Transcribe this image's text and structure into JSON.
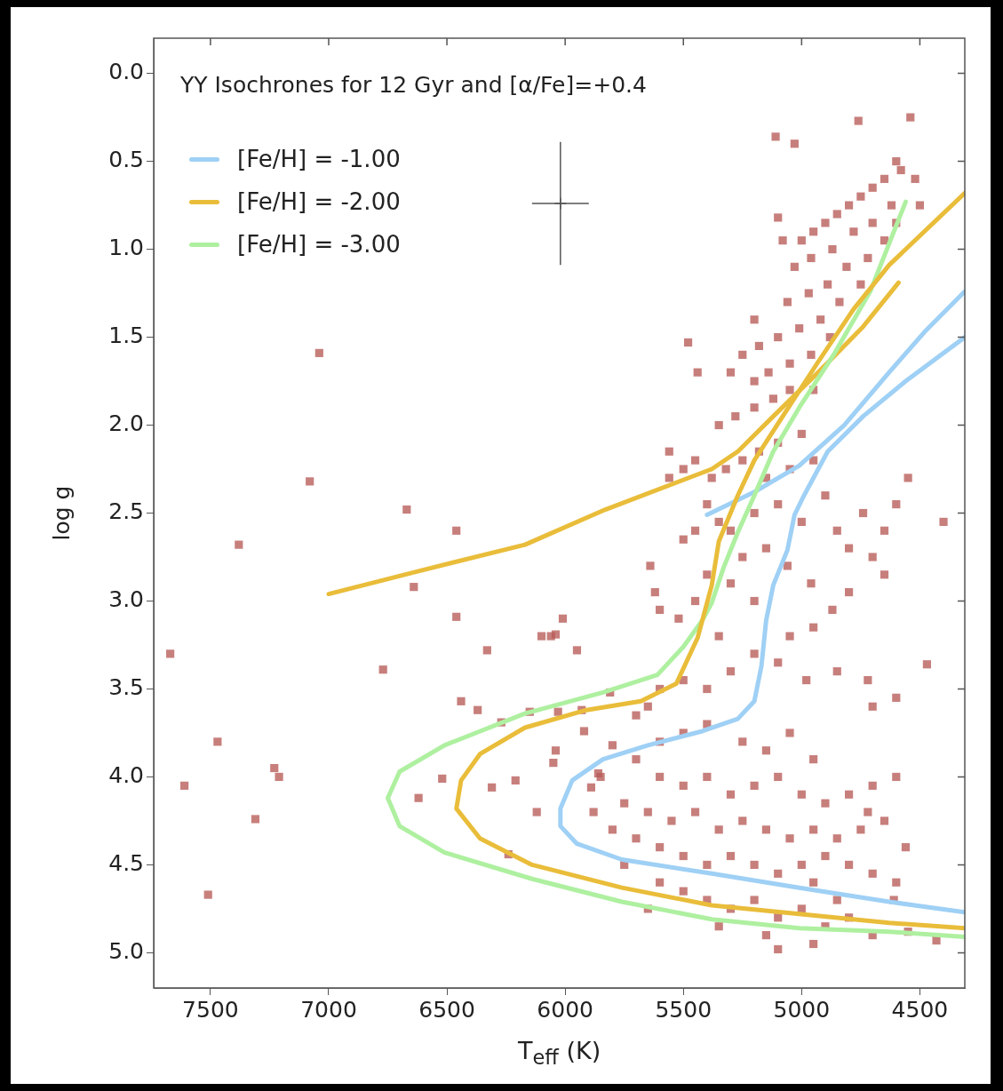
{
  "chart_data": {
    "type": "scatter",
    "title": "YY Isochrones for 12 Gyr and [α/Fe]=+0.4",
    "xlabel": "T$_{eff}$ (K)",
    "ylabel": "log g",
    "xlim": [
      7740,
      4310
    ],
    "ylim": [
      5.2,
      -0.2
    ],
    "xticks": [
      7500,
      7000,
      6500,
      6000,
      5500,
      5000,
      4500
    ],
    "yticks": [
      {
        "value": 0,
        "label": "0.0"
      },
      {
        "value": 0.5,
        "label": "0.5"
      },
      {
        "value": 1,
        "label": "1.0"
      },
      {
        "value": 1.5,
        "label": "1.5"
      },
      {
        "value": 2,
        "label": "2.0"
      },
      {
        "value": 2.5,
        "label": "2.5"
      },
      {
        "value": 3,
        "label": "3.0"
      },
      {
        "value": 3.5,
        "label": "3.5"
      },
      {
        "value": 4,
        "label": "4.0"
      },
      {
        "value": 4.5,
        "label": "4.5"
      },
      {
        "value": 5,
        "label": "5.0"
      }
    ],
    "legend": "top left",
    "series": [
      {
        "type": "scatter",
        "color": "#b85c58",
        "marker": "square",
        "x": [
          7670,
          7610,
          7470,
          7380,
          7510,
          7310,
          7230,
          7210,
          7080,
          7040,
          6770,
          6670,
          6620,
          6640,
          6520,
          6460,
          6460,
          6440,
          6370,
          6310,
          6330,
          6270,
          6240,
          6210,
          6120,
          6100,
          6060,
          6040,
          6010,
          5950,
          6150,
          6030,
          5930,
          5920,
          6040,
          6050,
          5810,
          5800,
          5860,
          5890,
          5480,
          5440,
          4540,
          4760,
          5110,
          5030,
          4400,
          4470,
          4550,
          4430,
          5100,
          4600,
          4650,
          4700,
          4750,
          4800,
          4850,
          4900,
          4950,
          5000,
          4580,
          4620,
          4700,
          4780,
          4870,
          4960,
          5030,
          4650,
          4720,
          4810,
          4890,
          4970,
          5060,
          4750,
          4840,
          4920,
          5010,
          5100,
          4880,
          4960,
          5050,
          5140,
          5200,
          4500,
          4520,
          4600,
          5100,
          5080,
          5200,
          5180,
          5250,
          5300,
          5120,
          5200,
          5280,
          5350,
          5050,
          4950,
          5000,
          5100,
          5180,
          5250,
          5320,
          5380,
          5150,
          5050,
          4950,
          5450,
          5500,
          5560,
          5560,
          5400,
          5350,
          5300,
          5200,
          5100,
          5000,
          4900,
          4850,
          4800,
          4700,
          4650,
          4600,
          4550,
          4650,
          4740,
          5250,
          5150,
          5060,
          4960,
          4800,
          4870,
          4950,
          5050,
          5200,
          5300,
          5400,
          5450,
          5520,
          5600,
          5640,
          5620,
          5500,
          5450,
          5350,
          5200,
          5100,
          4980,
          4850,
          4720,
          4700,
          4600,
          5300,
          5400,
          5500,
          5600,
          5650,
          5700,
          5700,
          5600,
          5500,
          5400,
          5300,
          5200,
          5100,
          5000,
          4900,
          4800,
          4700,
          4600,
          5750,
          5650,
          5550,
          5450,
          5350,
          5250,
          5150,
          5050,
          4950,
          4850,
          4750,
          4650,
          5800,
          5700,
          5600,
          5500,
          5400,
          5300,
          5200,
          5100,
          5000,
          4900,
          4800,
          4700,
          4600,
          4560,
          5600,
          5500,
          5400,
          5300,
          5200,
          5100,
          5000,
          4900,
          4800,
          4700,
          5350,
          5150,
          4950,
          4850,
          5250,
          5150,
          5050,
          4950,
          5400,
          5500,
          5600,
          5850,
          5880,
          5750,
          5650,
          4720,
          4610,
          4950
        ],
        "values": [
          3.3,
          4.05,
          3.8,
          2.68,
          4.67,
          4.24,
          3.95,
          4.0,
          2.32,
          1.59,
          3.39,
          2.48,
          4.12,
          2.92,
          4.01,
          2.6,
          3.09,
          3.57,
          3.62,
          4.06,
          3.28,
          3.69,
          4.44,
          4.02,
          4.2,
          3.2,
          3.2,
          3.19,
          3.1,
          3.28,
          3.63,
          3.63,
          3.62,
          3.74,
          3.85,
          3.92,
          3.52,
          3.82,
          3.98,
          4.06,
          1.53,
          1.7,
          0.25,
          0.27,
          0.36,
          0.4,
          2.55,
          3.36,
          4.88,
          4.93,
          4.98,
          0.5,
          0.6,
          0.65,
          0.7,
          0.75,
          0.8,
          0.85,
          0.9,
          0.95,
          0.55,
          0.75,
          0.85,
          0.9,
          1.0,
          1.05,
          1.1,
          0.95,
          1.05,
          1.1,
          1.2,
          1.25,
          1.3,
          1.2,
          1.3,
          1.4,
          1.45,
          1.5,
          1.5,
          1.6,
          1.65,
          1.7,
          1.75,
          0.75,
          0.6,
          0.85,
          0.82,
          0.95,
          1.4,
          1.55,
          1.6,
          1.7,
          1.85,
          1.9,
          1.95,
          2.0,
          1.8,
          1.8,
          2.05,
          2.1,
          2.15,
          2.2,
          2.25,
          2.3,
          2.3,
          2.25,
          2.2,
          2.2,
          2.25,
          2.15,
          2.3,
          2.45,
          2.55,
          2.6,
          2.5,
          2.45,
          2.55,
          2.4,
          2.6,
          2.7,
          2.75,
          2.85,
          2.45,
          2.3,
          2.6,
          2.5,
          2.75,
          2.7,
          2.8,
          2.9,
          2.95,
          3.05,
          3.15,
          3.2,
          3.0,
          2.9,
          2.85,
          3.0,
          3.1,
          3.05,
          2.8,
          2.95,
          2.65,
          2.6,
          3.2,
          3.3,
          3.35,
          3.45,
          3.4,
          3.45,
          3.6,
          3.55,
          3.4,
          3.5,
          3.45,
          3.5,
          3.6,
          3.65,
          3.9,
          4.0,
          4.05,
          4.0,
          4.1,
          4.05,
          4.0,
          4.1,
          4.15,
          4.1,
          4.05,
          4.0,
          4.15,
          4.2,
          4.25,
          4.2,
          4.3,
          4.25,
          4.3,
          4.35,
          4.3,
          4.35,
          4.3,
          4.25,
          4.3,
          4.35,
          4.4,
          4.45,
          4.5,
          4.45,
          4.5,
          4.55,
          4.5,
          4.45,
          4.5,
          4.55,
          4.6,
          4.4,
          4.6,
          4.65,
          4.7,
          4.75,
          4.7,
          4.8,
          4.75,
          4.85,
          4.8,
          4.9,
          4.85,
          4.9,
          4.95,
          4.7,
          3.8,
          3.85,
          3.75,
          3.9,
          3.7,
          3.75,
          3.8,
          4.0,
          4.2,
          4.5,
          4.75,
          4.2,
          4.7,
          4.6
        ]
      },
      {
        "type": "scatter",
        "color": "#555555",
        "marker": "cross",
        "x": [
          6020
        ],
        "values": [
          0.74
        ],
        "errors": [
          0.35
        ],
        "xerrors": [
          120
        ]
      },
      {
        "type": "line",
        "name": "[Fe/H] = -1.00",
        "color": "#9fd0f5",
        "x": [
          4310,
          4630,
          5010,
          5380,
          5760,
          5950,
          6020,
          6020,
          5970,
          5840,
          5650,
          5420,
          5270,
          5200,
          5170,
          5150,
          5120,
          5060,
          5030,
          4990,
          4890,
          4740,
          4560,
          4310
        ],
        "values": [
          4.77,
          4.71,
          4.63,
          4.55,
          4.47,
          4.38,
          4.28,
          4.18,
          4.02,
          3.9,
          3.82,
          3.74,
          3.67,
          3.57,
          3.37,
          3.11,
          2.91,
          2.71,
          2.51,
          2.4,
          2.15,
          1.95,
          1.75,
          1.5
        ]
      },
      {
        "type": "line",
        "name": "[Fe/H] = -2.00",
        "color": "#e9bd3a",
        "x": [
          4310,
          4630,
          5010,
          5380,
          5760,
          6140,
          6360,
          6460,
          6440,
          6360,
          6170,
          5910,
          5680,
          5530,
          5440,
          5380,
          5350,
          5270,
          5200,
          5080,
          4930,
          4780,
          4630,
          4310
        ],
        "values": [
          4.86,
          4.83,
          4.78,
          4.73,
          4.63,
          4.5,
          4.35,
          4.18,
          4.02,
          3.87,
          3.72,
          3.62,
          3.57,
          3.47,
          3.21,
          2.91,
          2.66,
          2.4,
          2.2,
          1.95,
          1.64,
          1.34,
          1.09,
          0.68
        ]
      },
      {
        "type": "line",
        "name": "[Fe/H] = -3.00",
        "color": "#aef0a0",
        "x": [
          4310,
          4630,
          5010,
          5380,
          5760,
          6140,
          6510,
          6700,
          6750,
          6700,
          6510,
          6170,
          5840,
          5610,
          5500,
          5420,
          5380,
          5330,
          5270,
          5200,
          5120,
          5010,
          4860,
          4710,
          4560
        ],
        "values": [
          4.91,
          4.88,
          4.86,
          4.81,
          4.71,
          4.58,
          4.43,
          4.28,
          4.12,
          3.97,
          3.82,
          3.64,
          3.52,
          3.42,
          3.26,
          3.11,
          3.01,
          2.81,
          2.61,
          2.4,
          2.15,
          1.9,
          1.59,
          1.24,
          0.73
        ]
      },
      {
        "type": "line",
        "color": "#9fd0f5",
        "x": [
          5400,
          5200,
          5010,
          4820,
          4630,
          4480,
          4310
        ],
        "values": [
          2.51,
          2.38,
          2.23,
          2.0,
          1.7,
          1.47,
          1.24
        ]
      },
      {
        "type": "line",
        "color": "#e9bd3a",
        "x": [
          7000,
          6620,
          6170,
          5830,
          5380,
          5270,
          5120,
          4930,
          4740,
          4590
        ],
        "values": [
          2.96,
          2.83,
          2.68,
          2.48,
          2.25,
          2.15,
          1.95,
          1.7,
          1.44,
          1.19
        ]
      }
    ]
  }
}
